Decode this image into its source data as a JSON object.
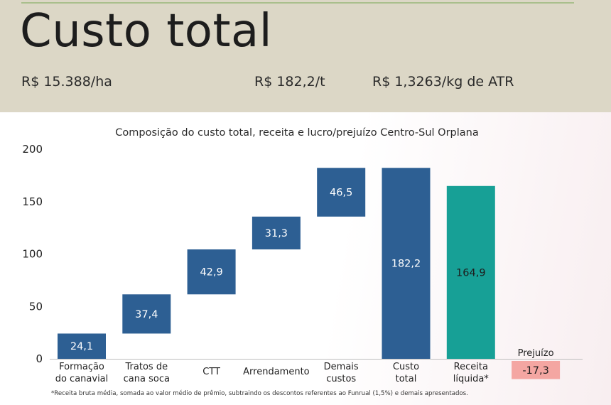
{
  "header": {
    "title": "Custo total",
    "metrics": [
      "R$ 15.388/ha",
      "R$ 182,2/t",
      "R$ 1,3263/kg de ATR"
    ]
  },
  "colors": {
    "header_bg": "#dcd7c6",
    "cost_bar": "#2d5f93",
    "revenue_bar": "#17a096",
    "loss_bar": "#f4a6a2"
  },
  "chart_data": {
    "type": "bar",
    "subtype": "waterfall",
    "title": "Composição do custo total, receita e lucro/prejuízo Centro-Sul Orplana",
    "ylim": [
      0,
      200
    ],
    "yticks": [
      "0",
      "50",
      "100",
      "150",
      "200"
    ],
    "grid": false,
    "bars": [
      {
        "category": "Formação do canavial",
        "label_lines": [
          "Formação",
          "do canavial"
        ],
        "start": 0,
        "end": 24.1,
        "value_label": "24,1",
        "kind": "cost"
      },
      {
        "category": "Tratos de cana soca",
        "label_lines": [
          "Tratos de",
          "cana soca"
        ],
        "start": 24.1,
        "end": 61.5,
        "value_label": "37,4",
        "kind": "cost"
      },
      {
        "category": "CTT",
        "label_lines": [
          "CTT"
        ],
        "start": 61.5,
        "end": 104.4,
        "value_label": "42,9",
        "kind": "cost"
      },
      {
        "category": "Arrendamento",
        "label_lines": [
          "Arrendamento"
        ],
        "start": 104.4,
        "end": 135.7,
        "value_label": "31,3",
        "kind": "cost"
      },
      {
        "category": "Demais custos",
        "label_lines": [
          "Demais",
          "custos"
        ],
        "start": 135.7,
        "end": 182.2,
        "value_label": "46,5",
        "kind": "cost"
      },
      {
        "category": "Custo total",
        "label_lines": [
          "Custo",
          "total"
        ],
        "start": 0,
        "end": 182.2,
        "value_label": "182,2",
        "kind": "total"
      },
      {
        "category": "Receita líquida*",
        "label_lines": [
          "Receita",
          "líquida*"
        ],
        "start": 0,
        "end": 164.9,
        "value_label": "164,9",
        "kind": "revenue"
      },
      {
        "category": "Prejuízo",
        "label_lines": [
          "Prejuízo"
        ],
        "start": 0,
        "end": -17.3,
        "value_label": "-17,3",
        "kind": "loss"
      }
    ]
  },
  "footnote": "*Receita bruta média, somada ao valor médio de prêmio, subtraindo os descontos referentes ao Funrual (1,5%) e demais apresentados."
}
